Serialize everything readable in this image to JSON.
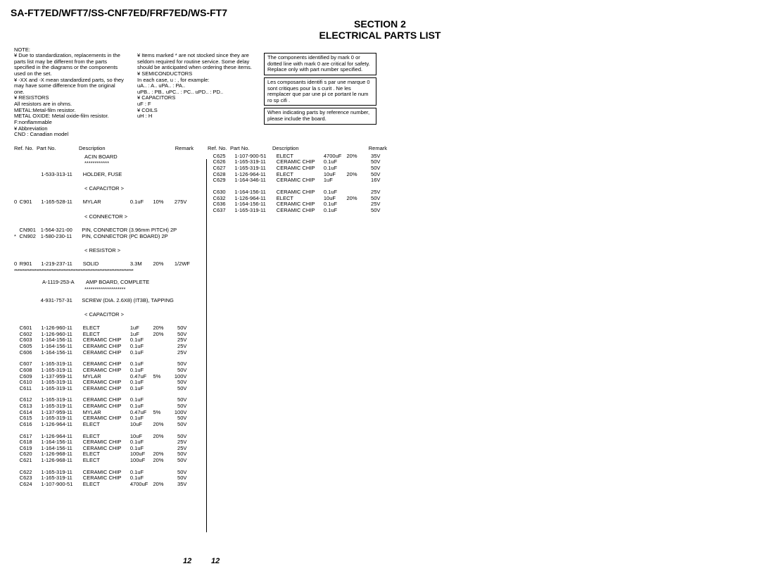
{
  "header": {
    "model": "SA-FT7ED/WFT7/SS-CNF7ED/FRF7ED/WS-FT7",
    "section": "SECTION 2",
    "title": "ELECTRICAL PARTS LIST"
  },
  "notes": {
    "label": "NOTE:",
    "col1": [
      "¥ Due to standardization, replacements in the parts list may be different from the parts specified in the diagrams or the components used on the set.",
      "¥ -XX and -X mean standardized parts, so they may have some difference from the original one.",
      "¥ RESISTORS",
      "All resistors are in ohms.",
      "METAL:Metal-film resistor.",
      "METAL OXIDE: Metal oxide-film resistor.",
      "F:nonflammable",
      "¥  Abbreviation",
      "CND : Canadian model"
    ],
    "col2": [
      "¥ Items marked  *  are not stocked since they are seldom required for routine service. Some delay should be anticipated when ordering these items.",
      "¥ SEMICONDUCTORS",
      "In each case, u :  , for example:",
      "uA.. :  A..    uPA.. :  PA..",
      "uPB.. :  PB..  uPC.. :  PC..  uPD.. :  PD..",
      "¥ CAPACITORS",
      "uF :   F",
      "¥ COILS",
      "uH :  H"
    ],
    "box1": "The components identified by mark 0   or dotted line with mark 0   are critical for safety. Replace only with part number specified.",
    "box2": "Les composants identifi s par une marque 0     sont critiques pour la s curit . Ne les remplacer que par une pi ce portant le num ro sp cifi .",
    "box3": "When indicating parts by reference number, please include the board."
  },
  "column_headers": {
    "ref": "Ref. No.",
    "part": "Part No.",
    "desc": "Description",
    "remark": "Remark"
  },
  "boards": {
    "acin": "ACIN BOARD",
    "acin_stars": "************",
    "amp": "AMP BOARD, COMPLETE",
    "amp_part": "A-1119-253-A",
    "amp_stars": "********************"
  },
  "sections": {
    "capacitor": "< CAPACITOR >",
    "connector": "< CONNECTOR >",
    "resistor": "< RESISTOR >"
  },
  "rows_col1": [
    {
      "m": "",
      "ref": "",
      "part": "1-533-313-11",
      "desc": "HOLDER, FUSE",
      "val": "",
      "tol": "",
      "volt": "",
      "rmk": ""
    },
    {
      "m": "0",
      "ref": "C901",
      "part": "1-165-528-11",
      "desc": "MYLAR",
      "val": "0.1uF",
      "tol": "10%",
      "volt": "275V",
      "rmk": ""
    },
    {
      "m": "",
      "ref": "CN901",
      "part": "1-564-321-00",
      "desc": "PIN, CONNECTOR (3.96mm PITCH) 2P",
      "val": "",
      "tol": "",
      "volt": "",
      "rmk": ""
    },
    {
      "m": "*",
      "ref": "CN902",
      "part": "1-580-230-11",
      "desc": "PIN, CONNECTOR (PC BOARD) 2P",
      "val": "",
      "tol": "",
      "volt": "",
      "rmk": ""
    },
    {
      "m": "0",
      "ref": "R901",
      "part": "1-219-237-11",
      "desc": "SOLID",
      "val": "3.3M",
      "tol": "20%",
      "volt": "1/2W",
      "rmk": "F"
    },
    {
      "m": "",
      "ref": "",
      "part": "4-931-757-31",
      "desc": "SCREW (DIA. 2.6X8) (IT3B), TAPPING",
      "val": "",
      "tol": "",
      "volt": "",
      "rmk": ""
    },
    {
      "m": "",
      "ref": "C601",
      "part": "1-126-960-11",
      "desc": "ELECT",
      "val": "1uF",
      "tol": "20%",
      "volt": "50V",
      "rmk": ""
    },
    {
      "m": "",
      "ref": "C602",
      "part": "1-126-960-11",
      "desc": "ELECT",
      "val": "1uF",
      "tol": "20%",
      "volt": "50V",
      "rmk": ""
    },
    {
      "m": "",
      "ref": "C603",
      "part": "1-164-156-11",
      "desc": "CERAMIC CHIP",
      "val": "0.1uF",
      "tol": "",
      "volt": "25V",
      "rmk": ""
    },
    {
      "m": "",
      "ref": "C605",
      "part": "1-164-156-11",
      "desc": "CERAMIC CHIP",
      "val": "0.1uF",
      "tol": "",
      "volt": "25V",
      "rmk": ""
    },
    {
      "m": "",
      "ref": "C606",
      "part": "1-164-156-11",
      "desc": "CERAMIC CHIP",
      "val": "0.1uF",
      "tol": "",
      "volt": "25V",
      "rmk": ""
    },
    {
      "m": "",
      "ref": "C607",
      "part": "1-165-319-11",
      "desc": "CERAMIC CHIP",
      "val": "0.1uF",
      "tol": "",
      "volt": "50V",
      "rmk": ""
    },
    {
      "m": "",
      "ref": "C608",
      "part": "1-165-319-11",
      "desc": "CERAMIC CHIP",
      "val": "0.1uF",
      "tol": "",
      "volt": "50V",
      "rmk": ""
    },
    {
      "m": "",
      "ref": "C609",
      "part": "1-137-959-11",
      "desc": "MYLAR",
      "val": "0.47uF",
      "tol": "5%",
      "volt": "100V",
      "rmk": ""
    },
    {
      "m": "",
      "ref": "C610",
      "part": "1-165-319-11",
      "desc": "CERAMIC CHIP",
      "val": "0.1uF",
      "tol": "",
      "volt": "50V",
      "rmk": ""
    },
    {
      "m": "",
      "ref": "C611",
      "part": "1-165-319-11",
      "desc": "CERAMIC CHIP",
      "val": "0.1uF",
      "tol": "",
      "volt": "50V",
      "rmk": ""
    },
    {
      "m": "",
      "ref": "C612",
      "part": "1-165-319-11",
      "desc": "CERAMIC CHIP",
      "val": "0.1uF",
      "tol": "",
      "volt": "50V",
      "rmk": ""
    },
    {
      "m": "",
      "ref": "C613",
      "part": "1-165-319-11",
      "desc": "CERAMIC CHIP",
      "val": "0.1uF",
      "tol": "",
      "volt": "50V",
      "rmk": ""
    },
    {
      "m": "",
      "ref": "C614",
      "part": "1-137-959-11",
      "desc": "MYLAR",
      "val": "0.47uF",
      "tol": "5%",
      "volt": "100V",
      "rmk": ""
    },
    {
      "m": "",
      "ref": "C615",
      "part": "1-165-319-11",
      "desc": "CERAMIC CHIP",
      "val": "0.1uF",
      "tol": "",
      "volt": "50V",
      "rmk": ""
    },
    {
      "m": "",
      "ref": "C616",
      "part": "1-126-964-11",
      "desc": "ELECT",
      "val": "10uF",
      "tol": "20%",
      "volt": "50V",
      "rmk": ""
    },
    {
      "m": "",
      "ref": "C617",
      "part": "1-126-964-11",
      "desc": "ELECT",
      "val": "10uF",
      "tol": "20%",
      "volt": "50V",
      "rmk": ""
    },
    {
      "m": "",
      "ref": "C618",
      "part": "1-164-156-11",
      "desc": "CERAMIC CHIP",
      "val": "0.1uF",
      "tol": "",
      "volt": "25V",
      "rmk": ""
    },
    {
      "m": "",
      "ref": "C619",
      "part": "1-164-156-11",
      "desc": "CERAMIC CHIP",
      "val": "0.1uF",
      "tol": "",
      "volt": "25V",
      "rmk": ""
    },
    {
      "m": "",
      "ref": "C620",
      "part": "1-126-968-11",
      "desc": "ELECT",
      "val": "100uF",
      "tol": "20%",
      "volt": "50V",
      "rmk": ""
    },
    {
      "m": "",
      "ref": "C621",
      "part": "1-126-968-11",
      "desc": "ELECT",
      "val": "100uF",
      "tol": "20%",
      "volt": "50V",
      "rmk": ""
    },
    {
      "m": "",
      "ref": "C622",
      "part": "1-165-319-11",
      "desc": "CERAMIC CHIP",
      "val": "0.1uF",
      "tol": "",
      "volt": "50V",
      "rmk": ""
    },
    {
      "m": "",
      "ref": "C623",
      "part": "1-165-319-11",
      "desc": "CERAMIC CHIP",
      "val": "0.1uF",
      "tol": "",
      "volt": "50V",
      "rmk": ""
    },
    {
      "m": "",
      "ref": "C624",
      "part": "1-107-900-51",
      "desc": "ELECT",
      "val": "4700uF",
      "tol": "20%",
      "volt": "35V",
      "rmk": ""
    }
  ],
  "rows_col2": [
    {
      "m": "",
      "ref": "C625",
      "part": "1-107-900-51",
      "desc": "ELECT",
      "val": "4700uF",
      "tol": "20%",
      "volt": "35V",
      "rmk": ""
    },
    {
      "m": "",
      "ref": "C626",
      "part": "1-165-319-11",
      "desc": "CERAMIC CHIP",
      "val": "0.1uF",
      "tol": "",
      "volt": "50V",
      "rmk": ""
    },
    {
      "m": "",
      "ref": "C627",
      "part": "1-165-319-11",
      "desc": "CERAMIC CHIP",
      "val": "0.1uF",
      "tol": "",
      "volt": "50V",
      "rmk": ""
    },
    {
      "m": "",
      "ref": "C628",
      "part": "1-126-964-11",
      "desc": "ELECT",
      "val": "10uF",
      "tol": "20%",
      "volt": "50V",
      "rmk": ""
    },
    {
      "m": "",
      "ref": "C629",
      "part": "1-164-346-11",
      "desc": "CERAMIC CHIP",
      "val": "1uF",
      "tol": "",
      "volt": "16V",
      "rmk": ""
    },
    {
      "m": "",
      "ref": "C630",
      "part": "1-164-156-11",
      "desc": "CERAMIC CHIP",
      "val": "0.1uF",
      "tol": "",
      "volt": "25V",
      "rmk": ""
    },
    {
      "m": "",
      "ref": "C632",
      "part": "1-126-964-11",
      "desc": "ELECT",
      "val": "10uF",
      "tol": "20%",
      "volt": "50V",
      "rmk": ""
    },
    {
      "m": "",
      "ref": "C636",
      "part": "1-164-156-11",
      "desc": "CERAMIC CHIP",
      "val": "0.1uF",
      "tol": "",
      "volt": "25V",
      "rmk": ""
    },
    {
      "m": "",
      "ref": "C637",
      "part": "1-165-319-11",
      "desc": "CERAMIC CHIP",
      "val": "0.1uF",
      "tol": "",
      "volt": "50V",
      "rmk": ""
    }
  ],
  "page_num": "12"
}
